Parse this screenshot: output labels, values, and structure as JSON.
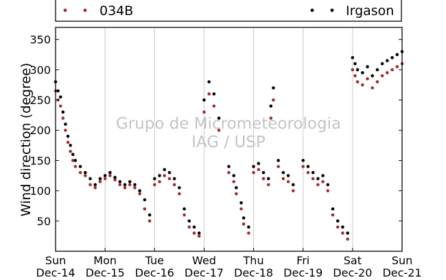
{
  "chart_data": {
    "type": "scatter",
    "ylabel": "Wind direction (degree)",
    "xlabel": "",
    "ylim": [
      0,
      370
    ],
    "yticks": [
      50,
      100,
      150,
      200,
      250,
      300,
      350
    ],
    "xlim": [
      0,
      7
    ],
    "xticks": [
      {
        "pos": 0,
        "day": "Sun",
        "date": "Dec-14"
      },
      {
        "pos": 1,
        "day": "Mon",
        "date": "Dec-15"
      },
      {
        "pos": 2,
        "day": "Tue",
        "date": "Dec-16"
      },
      {
        "pos": 3,
        "day": "Wed",
        "date": "Dec-17"
      },
      {
        "pos": 4,
        "day": "Thu",
        "date": "Dec-18"
      },
      {
        "pos": 5,
        "day": "Fri",
        "date": "Dec-19"
      },
      {
        "pos": 6,
        "day": "Sat",
        "date": "Dec-20"
      },
      {
        "pos": 7,
        "day": "Sun",
        "date": "Dec-21"
      }
    ],
    "grid": "vertical",
    "legend_placement": "top",
    "series": [
      {
        "name": "034B",
        "color": "#a52a2a",
        "x": [
          0.0,
          0.05,
          0.1,
          0.15,
          0.2,
          0.25,
          0.3,
          0.35,
          0.4,
          0.5,
          0.6,
          0.7,
          0.8,
          0.9,
          1.0,
          1.1,
          1.2,
          1.3,
          1.4,
          1.5,
          1.6,
          1.7,
          1.8,
          1.9,
          2.0,
          2.1,
          2.2,
          2.3,
          2.4,
          2.5,
          2.6,
          2.7,
          2.8,
          2.9,
          3.0,
          3.1,
          3.2,
          3.3,
          3.5,
          3.6,
          3.65,
          3.75,
          3.8,
          3.9,
          4.0,
          4.1,
          4.2,
          4.3,
          4.35,
          4.4,
          4.5,
          4.6,
          4.7,
          4.8,
          5.0,
          5.1,
          5.2,
          5.3,
          5.4,
          5.5,
          5.6,
          5.7,
          5.8,
          5.9,
          6.0,
          6.05,
          6.1,
          6.2,
          6.3,
          6.4,
          6.5,
          6.6,
          6.7,
          6.8,
          6.9,
          7.0
        ],
        "y": [
          265,
          250,
          240,
          220,
          200,
          180,
          165,
          150,
          140,
          130,
          125,
          110,
          105,
          115,
          120,
          125,
          118,
          110,
          105,
          110,
          105,
          95,
          70,
          50,
          110,
          115,
          125,
          120,
          110,
          95,
          60,
          40,
          30,
          25,
          230,
          260,
          240,
          200,
          130,
          115,
          95,
          70,
          45,
          30,
          130,
          135,
          120,
          110,
          220,
          250,
          140,
          120,
          115,
          100,
          140,
          130,
          120,
          110,
          115,
          100,
          60,
          40,
          30,
          20,
          300,
          290,
          280,
          275,
          285,
          270,
          280,
          290,
          295,
          300,
          305,
          310
        ]
      },
      {
        "name": "Irgason",
        "color": "#000000",
        "x": [
          0.0,
          0.05,
          0.1,
          0.15,
          0.2,
          0.25,
          0.3,
          0.35,
          0.4,
          0.5,
          0.6,
          0.7,
          0.8,
          0.9,
          1.0,
          1.1,
          1.2,
          1.3,
          1.4,
          1.5,
          1.6,
          1.7,
          1.8,
          1.9,
          2.0,
          2.1,
          2.2,
          2.3,
          2.4,
          2.5,
          2.6,
          2.7,
          2.8,
          2.9,
          3.0,
          3.1,
          3.2,
          3.3,
          3.5,
          3.6,
          3.65,
          3.75,
          3.8,
          3.9,
          4.0,
          4.1,
          4.2,
          4.3,
          4.35,
          4.4,
          4.5,
          4.6,
          4.7,
          4.8,
          5.0,
          5.1,
          5.2,
          5.3,
          5.4,
          5.5,
          5.6,
          5.7,
          5.8,
          5.9,
          6.0,
          6.05,
          6.1,
          6.2,
          6.3,
          6.4,
          6.5,
          6.6,
          6.7,
          6.8,
          6.9,
          7.0
        ],
        "y": [
          280,
          265,
          255,
          230,
          210,
          190,
          175,
          160,
          150,
          140,
          130,
          120,
          110,
          120,
          125,
          130,
          122,
          115,
          110,
          115,
          110,
          100,
          85,
          60,
          120,
          125,
          135,
          130,
          120,
          105,
          70,
          50,
          40,
          30,
          250,
          280,
          260,
          220,
          140,
          125,
          105,
          80,
          55,
          40,
          140,
          145,
          130,
          120,
          240,
          270,
          150,
          130,
          125,
          110,
          150,
          140,
          130,
          120,
          125,
          110,
          70,
          50,
          40,
          30,
          320,
          310,
          300,
          295,
          305,
          290,
          300,
          310,
          315,
          320,
          325,
          330
        ]
      }
    ]
  },
  "watermark": {
    "line1": "Grupo de Micrometeorologia",
    "line2": "IAG / USP"
  }
}
